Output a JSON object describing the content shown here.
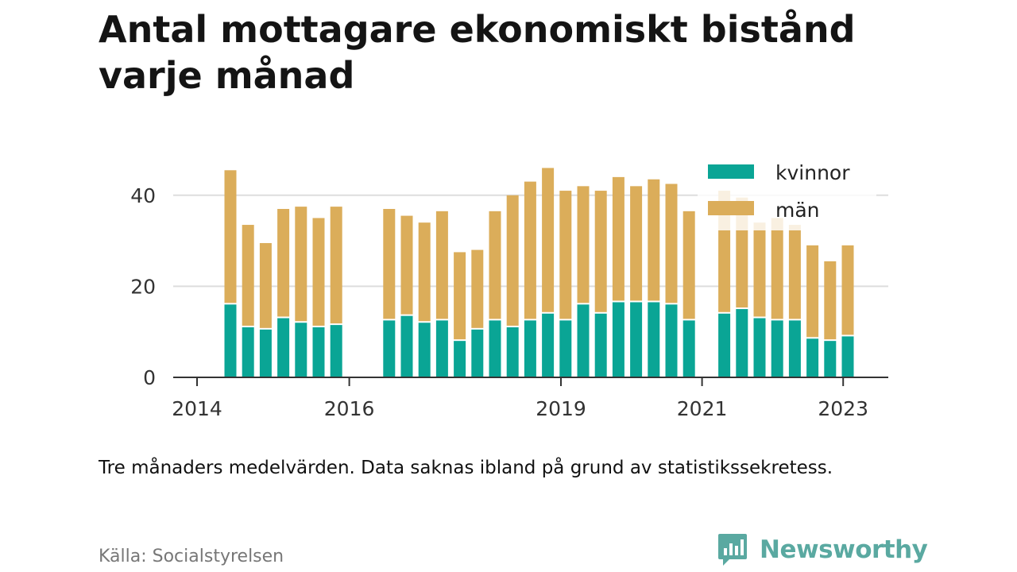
{
  "title": "Antal mottagare ekonomiskt bistånd varje månad",
  "note": "Tre månaders medelvärden. Data saknas ibland på grund av statistikssekretess.",
  "source": "Källa: Socialstyrelsen",
  "brand": "Newsworthy",
  "colors": {
    "kvinnor": "#0aa595",
    "man": "#dbad5a",
    "grid": "#dddddd",
    "axis": "#333333",
    "brand": "#5aa9a1"
  },
  "chart_data": {
    "type": "bar",
    "stacked": true,
    "x": [
      "2014-04",
      "2014-07",
      "2014-10",
      "2015-01",
      "2015-04",
      "2015-07",
      "2015-10",
      "2016-07",
      "2016-10",
      "2017-01",
      "2017-04",
      "2017-07",
      "2017-10",
      "2018-01",
      "2018-04",
      "2018-07",
      "2018-10",
      "2019-01",
      "2019-04",
      "2019-07",
      "2019-10",
      "2020-01",
      "2020-04",
      "2020-07",
      "2020-10",
      "2021-04",
      "2021-07",
      "2021-10",
      "2022-01",
      "2022-04",
      "2022-07",
      "2022-10",
      "2023-01"
    ],
    "series": [
      {
        "name": "kvinnor",
        "values": [
          16,
          11,
          10.5,
          13,
          12,
          11,
          11.5,
          12.5,
          13.5,
          12,
          12.5,
          8,
          10.5,
          12.5,
          11,
          12.5,
          14,
          12.5,
          16,
          14,
          16.5,
          16.5,
          16.5,
          16,
          12.5,
          14,
          15,
          13,
          12.5,
          12.5,
          8.5,
          8,
          9
        ]
      },
      {
        "name": "män",
        "values": [
          29.5,
          22.5,
          19,
          24,
          25.5,
          24,
          26,
          24.5,
          22,
          22,
          24,
          19.5,
          17.5,
          24,
          29,
          30.5,
          32,
          28.5,
          26,
          27,
          27.5,
          25.5,
          27,
          26.5,
          24,
          27,
          24.5,
          21,
          22.5,
          21,
          20.5,
          17.5,
          20
        ]
      }
    ],
    "xticks": [
      "2014",
      "2016",
      "2019",
      "2021",
      "2023"
    ],
    "yticks": [
      0,
      20,
      40
    ],
    "ylim": [
      0,
      46
    ],
    "legend_position": "top-right",
    "grid": true
  }
}
